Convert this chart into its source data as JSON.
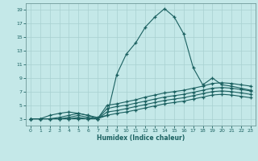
{
  "xlabel": "Humidex (Indice chaleur)",
  "ylabel": "",
  "bg_color": "#c4e8e8",
  "grid_color": "#a8d0d0",
  "line_color": "#1a6060",
  "xlim": [
    -0.5,
    23.5
  ],
  "ylim": [
    2.0,
    20.0
  ],
  "xticks": [
    0,
    1,
    2,
    3,
    4,
    5,
    6,
    7,
    8,
    9,
    10,
    11,
    12,
    13,
    14,
    15,
    16,
    17,
    18,
    19,
    20,
    21,
    22,
    23
  ],
  "yticks": [
    3,
    5,
    7,
    9,
    11,
    13,
    15,
    17,
    19
  ],
  "lines": [
    {
      "x": [
        0,
        1,
        2,
        3,
        4,
        5,
        6,
        7,
        8,
        9,
        10,
        11,
        12,
        13,
        14,
        15,
        16,
        17,
        18,
        19,
        20,
        21,
        22,
        23
      ],
      "y": [
        3.0,
        3.0,
        3.5,
        3.8,
        4.0,
        3.8,
        3.5,
        3.2,
        3.5,
        9.5,
        12.5,
        14.2,
        16.5,
        18.0,
        19.2,
        18.0,
        15.5,
        10.5,
        8.0,
        9.0,
        8.0,
        7.8,
        7.5,
        7.2
      ]
    },
    {
      "x": [
        0,
        1,
        2,
        3,
        4,
        5,
        6,
        7,
        8,
        9,
        10,
        11,
        12,
        13,
        14,
        15,
        16,
        17,
        18,
        19,
        20,
        21,
        22,
        23
      ],
      "y": [
        3.0,
        3.0,
        3.0,
        3.2,
        3.5,
        3.8,
        3.5,
        3.0,
        5.0,
        5.2,
        5.5,
        5.8,
        6.2,
        6.5,
        6.8,
        7.0,
        7.2,
        7.5,
        7.8,
        8.2,
        8.3,
        8.2,
        8.0,
        7.8
      ]
    },
    {
      "x": [
        0,
        1,
        2,
        3,
        4,
        5,
        6,
        7,
        8,
        9,
        10,
        11,
        12,
        13,
        14,
        15,
        16,
        17,
        18,
        19,
        20,
        21,
        22,
        23
      ],
      "y": [
        3.0,
        3.0,
        3.0,
        3.0,
        3.2,
        3.5,
        3.2,
        3.0,
        4.5,
        4.8,
        5.0,
        5.3,
        5.6,
        5.9,
        6.2,
        6.4,
        6.6,
        6.9,
        7.2,
        7.5,
        7.6,
        7.5,
        7.3,
        7.1
      ]
    },
    {
      "x": [
        0,
        1,
        2,
        3,
        4,
        5,
        6,
        7,
        8,
        9,
        10,
        11,
        12,
        13,
        14,
        15,
        16,
        17,
        18,
        19,
        20,
        21,
        22,
        23
      ],
      "y": [
        3.0,
        3.0,
        3.0,
        3.0,
        3.0,
        3.2,
        3.0,
        3.0,
        4.0,
        4.2,
        4.5,
        4.8,
        5.1,
        5.4,
        5.7,
        5.9,
        6.1,
        6.4,
        6.7,
        7.0,
        7.1,
        7.0,
        6.8,
        6.6
      ]
    },
    {
      "x": [
        0,
        1,
        2,
        3,
        4,
        5,
        6,
        7,
        8,
        9,
        10,
        11,
        12,
        13,
        14,
        15,
        16,
        17,
        18,
        19,
        20,
        21,
        22,
        23
      ],
      "y": [
        3.0,
        3.0,
        3.0,
        3.0,
        3.0,
        3.0,
        3.0,
        3.0,
        3.5,
        3.8,
        4.0,
        4.3,
        4.6,
        4.9,
        5.2,
        5.4,
        5.6,
        5.9,
        6.2,
        6.5,
        6.6,
        6.5,
        6.3,
        6.1
      ]
    }
  ]
}
